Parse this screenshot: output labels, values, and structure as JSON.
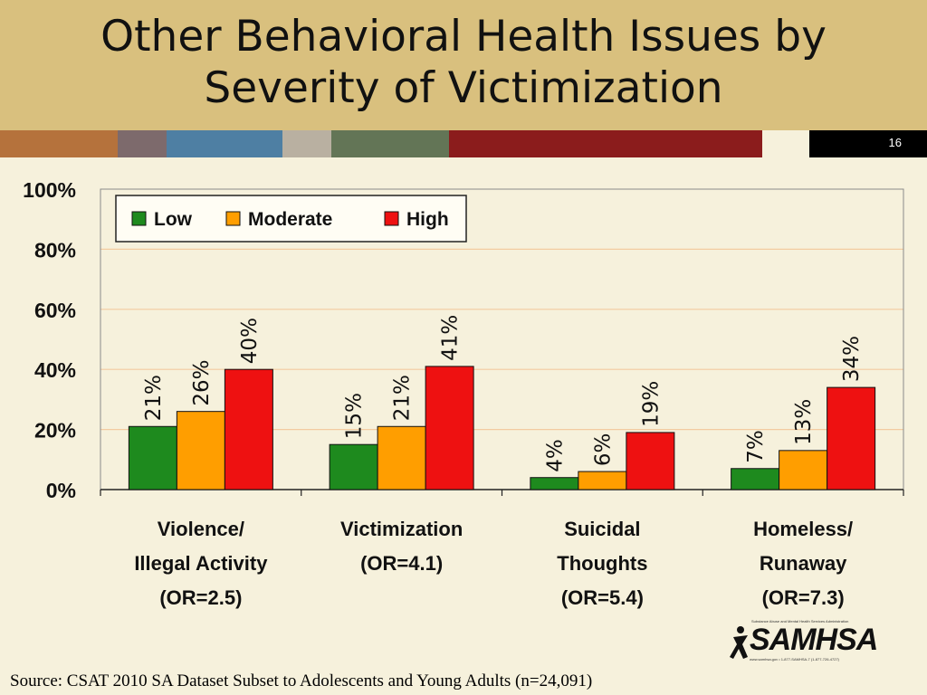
{
  "slide": {
    "title_line1": "Other Behavioral Health Issues by",
    "title_line2": "Severity of Victimization",
    "number": "16",
    "source": "Source: CSAT 2010 SA Dataset Subset to Adolescents and Young Adults (n=24,091)",
    "strip_colors": [
      "#b5723c",
      "#7d6a6c",
      "#4e7fa3",
      "#b9b0a1",
      "#637556",
      "#8b1c1c",
      "#f6f1dc",
      "#000000"
    ],
    "logo": {
      "name": "SAMHSA",
      "tagline": "Substance Abuse and Mental Health Services Administration",
      "contact": "www.samhsa.gov • 1-877-SAMHSA-7 (1-877-726-4727)"
    }
  },
  "chart_data": {
    "type": "bar",
    "title": "Other Behavioral Health Issues by Severity of Victimization",
    "categories": [
      [
        "Violence/",
        "Illegal Activity",
        "(OR=2.5)"
      ],
      [
        "Victimization",
        "(OR=4.1)"
      ],
      [
        "Suicidal",
        "Thoughts",
        "(OR=5.4)"
      ],
      [
        "Homeless/",
        "Runaway",
        "(OR=7.3)"
      ]
    ],
    "series": [
      {
        "name": "Low",
        "color": "#1e8a1e",
        "values": [
          21,
          15,
          4,
          7
        ]
      },
      {
        "name": "Moderate",
        "color": "#ff9e00",
        "values": [
          26,
          21,
          6,
          13
        ]
      },
      {
        "name": "High",
        "color": "#ee1111",
        "values": [
          40,
          41,
          19,
          34
        ]
      }
    ],
    "ylim": [
      0,
      100
    ],
    "yticks": [
      "0%",
      "20%",
      "40%",
      "60%",
      "80%",
      "100%"
    ],
    "ytick_values": [
      0,
      20,
      40,
      60,
      80,
      100
    ],
    "grid": true,
    "grid_color": "#f3cba0",
    "legend_position": "top-left",
    "data_label_suffix": "%"
  }
}
